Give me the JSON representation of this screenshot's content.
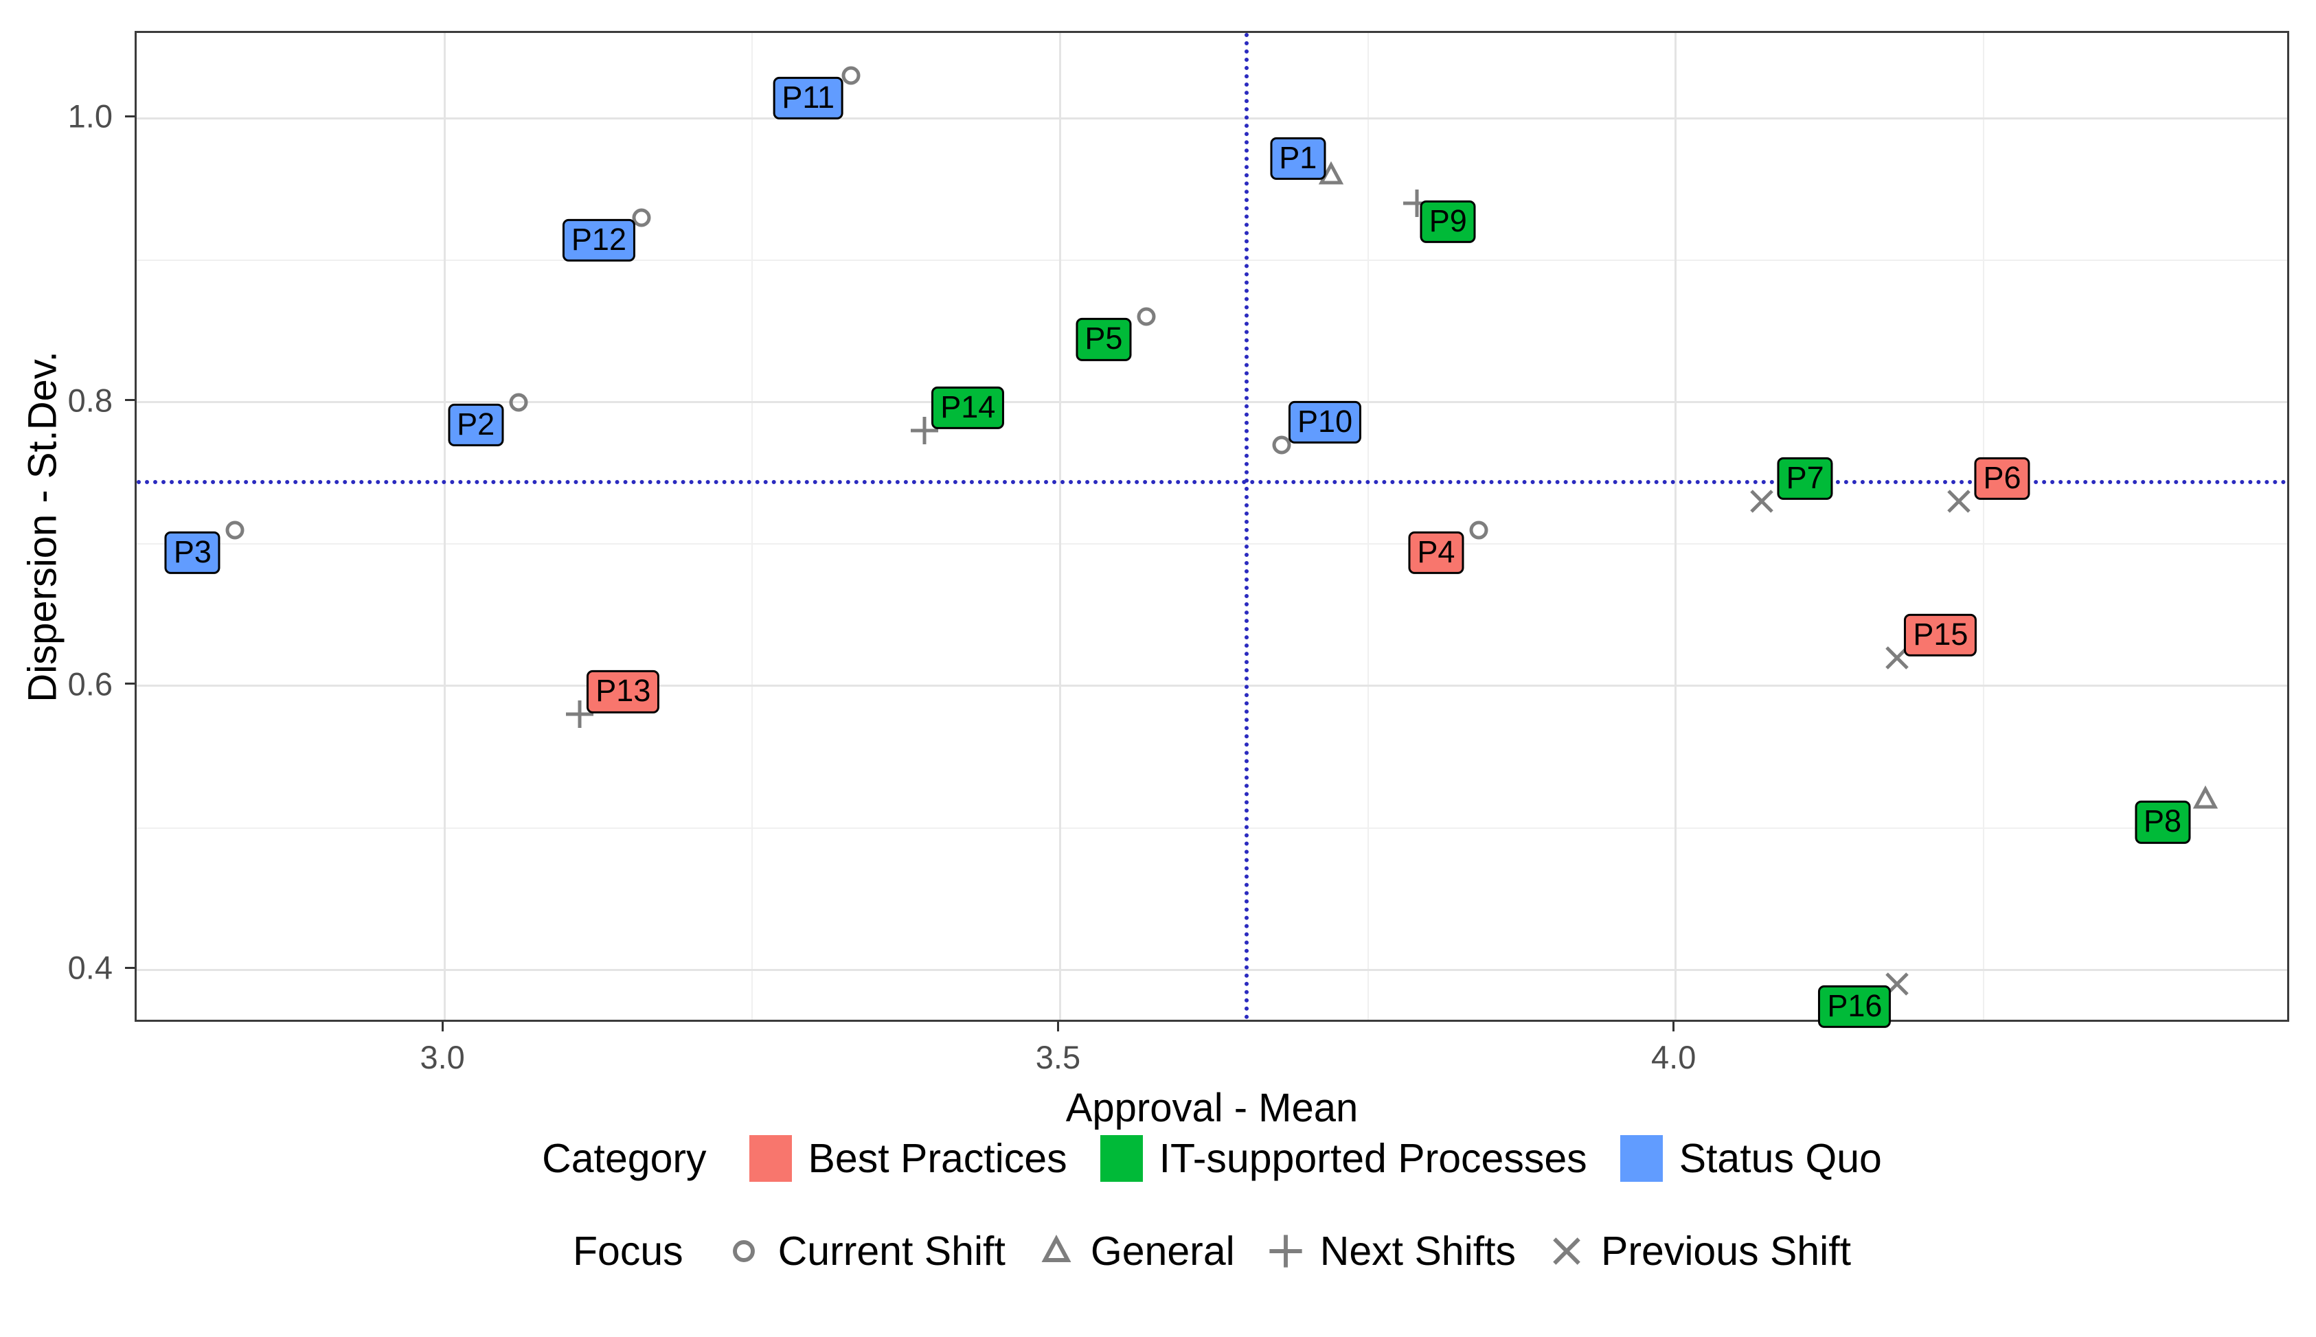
{
  "chart_data": {
    "type": "scatter",
    "title": "",
    "xlabel": "Approval - Mean",
    "ylabel": "Dispersion - St.Dev.",
    "xlim": [
      2.75,
      4.5
    ],
    "ylim": [
      0.362,
      1.06
    ],
    "x_ticks": [
      3.0,
      3.5,
      4.0
    ],
    "y_ticks": [
      0.4,
      0.6,
      0.8,
      1.0
    ],
    "grid": {
      "x_major": [
        3.0,
        3.5,
        4.0
      ],
      "x_minor": [
        3.25,
        3.75,
        4.25
      ],
      "y_major": [
        0.4,
        0.6,
        0.8,
        1.0
      ],
      "y_minor": [
        0.5,
        0.7,
        0.9
      ]
    },
    "grid_on": true,
    "legend_position": "bottom",
    "reference_lines": {
      "vertical_x": 3.65,
      "horizontal_y": 0.745,
      "color": "#2b2bbf",
      "style": "dotted"
    },
    "marker_color": "#7e7e7e",
    "categories": {
      "best": {
        "label": "Best Practices",
        "color": "#F8766D"
      },
      "it": {
        "label": "IT-supported Processes",
        "color": "#00BA38"
      },
      "sq": {
        "label": "Status Quo",
        "color": "#619CFF"
      }
    },
    "focus_shapes": {
      "current": {
        "label": "Current Shift",
        "shape": "circle"
      },
      "general": {
        "label": "General",
        "shape": "triangle"
      },
      "next": {
        "label": "Next Shifts",
        "shape": "plus"
      },
      "previous": {
        "label": "Previous Shift",
        "shape": "x"
      }
    },
    "points": [
      {
        "label": "P1",
        "x": 3.72,
        "y": 0.96,
        "category": "sq",
        "focus": "general",
        "label_side": "above-left"
      },
      {
        "label": "P2",
        "x": 3.06,
        "y": 0.8,
        "category": "sq",
        "focus": "current",
        "label_side": "below-left"
      },
      {
        "label": "P3",
        "x": 2.83,
        "y": 0.71,
        "category": "sq",
        "focus": "current",
        "label_side": "below-left"
      },
      {
        "label": "P4",
        "x": 3.84,
        "y": 0.71,
        "category": "best",
        "focus": "current",
        "label_side": "below-left"
      },
      {
        "label": "P5",
        "x": 3.57,
        "y": 0.86,
        "category": "it",
        "focus": "current",
        "label_side": "below-left"
      },
      {
        "label": "P6",
        "x": 4.23,
        "y": 0.73,
        "category": "best",
        "focus": "previous",
        "label_side": "above-right"
      },
      {
        "label": "P7",
        "x": 4.07,
        "y": 0.73,
        "category": "it",
        "focus": "previous",
        "label_side": "above-right"
      },
      {
        "label": "P8",
        "x": 4.43,
        "y": 0.52,
        "category": "it",
        "focus": "general",
        "label_side": "below-left"
      },
      {
        "label": "P9",
        "x": 3.79,
        "y": 0.94,
        "category": "it",
        "focus": "next",
        "label_side": "below-right"
      },
      {
        "label": "P10",
        "x": 3.68,
        "y": 0.77,
        "category": "sq",
        "focus": "current",
        "label_side": "above-right"
      },
      {
        "label": "P11",
        "x": 3.33,
        "y": 1.03,
        "category": "sq",
        "focus": "current",
        "label_side": "below-left"
      },
      {
        "label": "P12",
        "x": 3.16,
        "y": 0.93,
        "category": "sq",
        "focus": "current",
        "label_side": "below-left"
      },
      {
        "label": "P13",
        "x": 3.11,
        "y": 0.58,
        "category": "best",
        "focus": "next",
        "label_side": "above-right"
      },
      {
        "label": "P14",
        "x": 3.39,
        "y": 0.78,
        "category": "it",
        "focus": "next",
        "label_side": "above-right"
      },
      {
        "label": "P15",
        "x": 4.18,
        "y": 0.62,
        "category": "best",
        "focus": "previous",
        "label_side": "above-right"
      },
      {
        "label": "P16",
        "x": 4.18,
        "y": 0.39,
        "category": "it",
        "focus": "previous",
        "label_side": "below-left"
      }
    ]
  },
  "legend": {
    "category_title": "Category",
    "focus_title": "Focus"
  }
}
